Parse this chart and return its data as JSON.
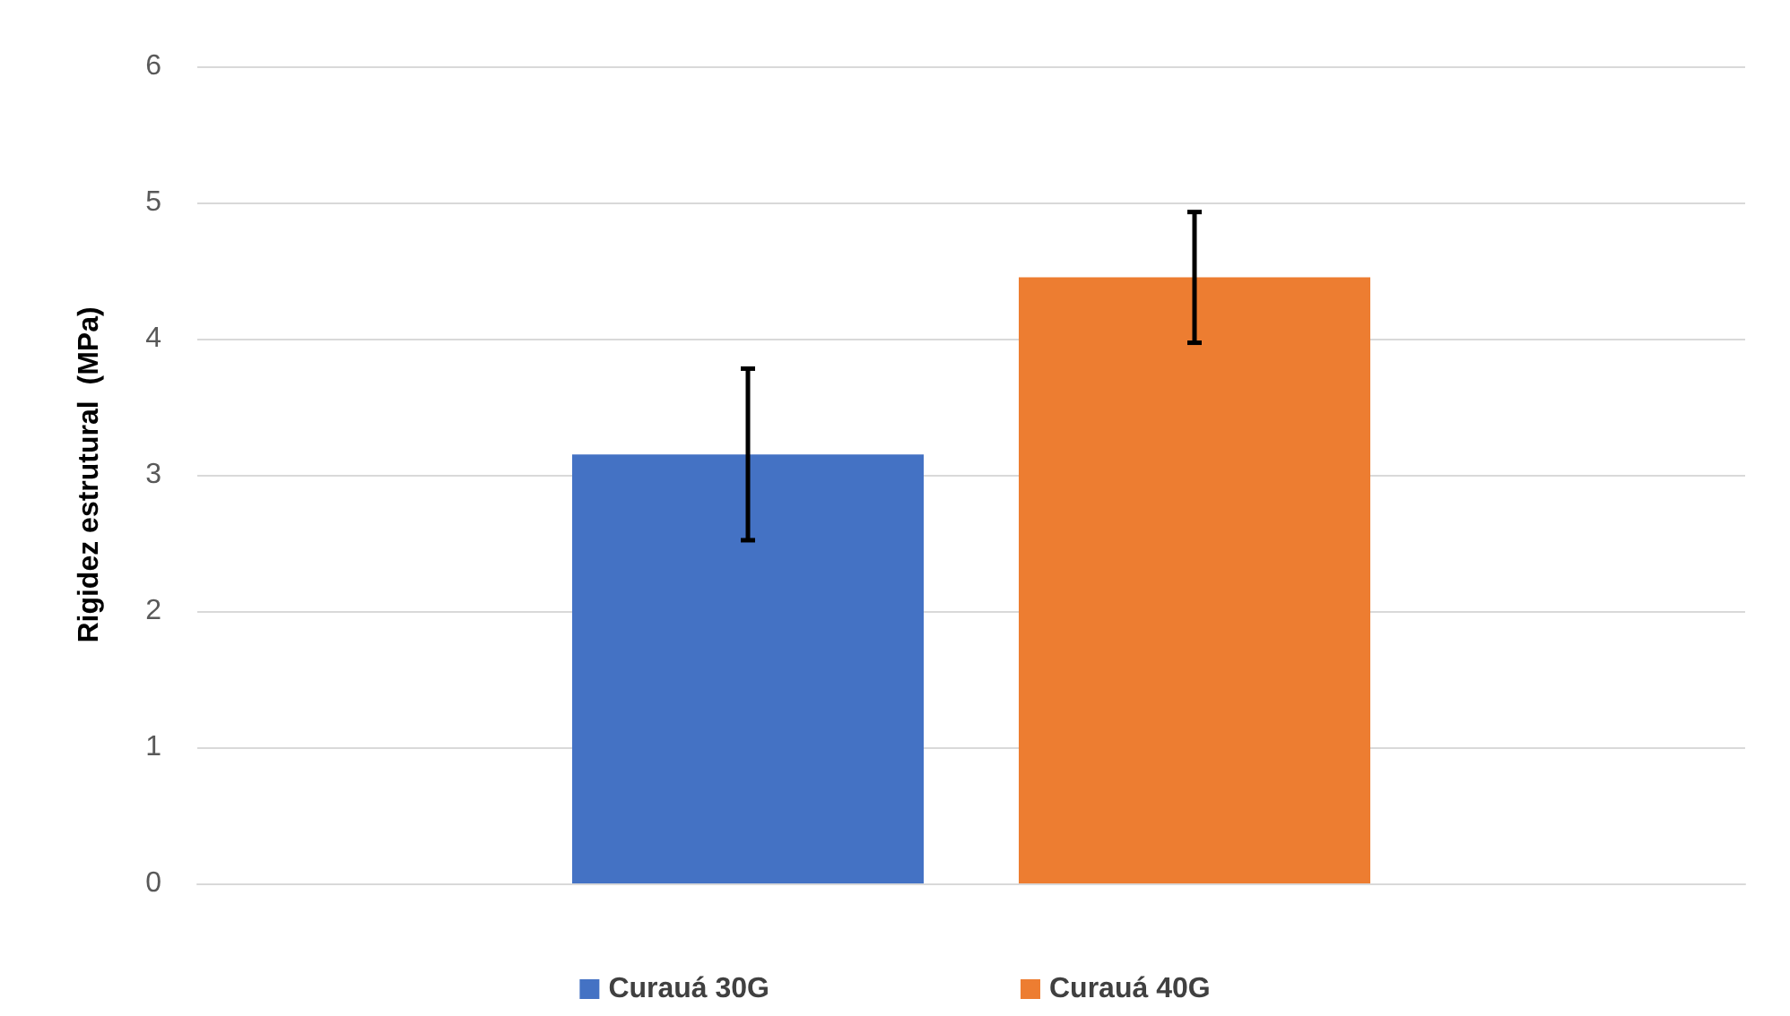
{
  "chart_data": {
    "type": "bar",
    "ylabel": "Rigidez estrutural  (MPa)",
    "categories": [
      null
    ],
    "series": [
      {
        "name": "Curauá 30G",
        "color": "#4472c4",
        "values": [
          3.15
        ],
        "errors": [
          0.63
        ]
      },
      {
        "name": "Curauá 40G",
        "color": "#ed7d31",
        "values": [
          4.45
        ],
        "errors": [
          0.48
        ]
      }
    ],
    "ylim": [
      0,
      6
    ],
    "yticks": [
      0,
      1,
      2,
      3,
      4,
      5,
      6
    ],
    "grid": "y",
    "legend": "bottom"
  }
}
